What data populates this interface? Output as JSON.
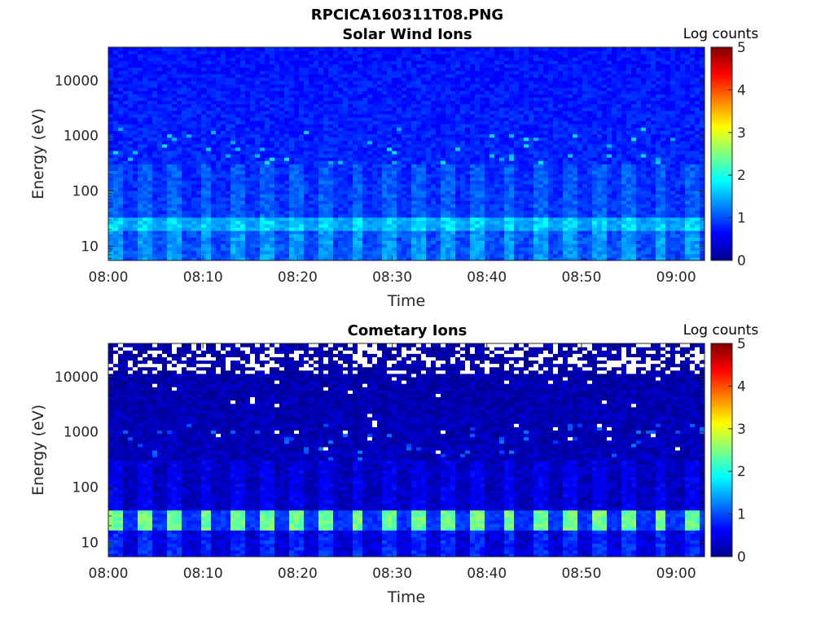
{
  "figure": {
    "title": "RPCICA160311T08.PNG"
  },
  "colors": {
    "background": "#ffffff",
    "empty_bin": "#ffffff",
    "colormap": "jet"
  },
  "chart_data": [
    {
      "type": "heatmap",
      "title": "Solar Wind Ions",
      "xlabel": "Time",
      "ylabel": "Energy (eV)",
      "x_ticks": [
        "08:00",
        "08:10",
        "08:20",
        "08:30",
        "08:40",
        "08:50",
        "09:00"
      ],
      "x_range": [
        "08:00",
        "09:03"
      ],
      "y_scale": "log",
      "y_ticks": [
        10,
        100,
        1000,
        10000
      ],
      "y_range": [
        5.5,
        40000
      ],
      "colorbar": {
        "label": "Log counts",
        "range": [
          0,
          5
        ],
        "ticks": [
          0,
          1,
          2,
          3,
          4,
          5
        ]
      },
      "pattern": {
        "sweep_period_min": 3.2,
        "background_level": 0.9,
        "background_high_energy_level": 0.7,
        "peak_band_eV": [
          20,
          35
        ],
        "peak_level": 1.7,
        "empty_bins_above_eV": null
      }
    },
    {
      "type": "heatmap",
      "title": "Cometary Ions",
      "xlabel": "Time",
      "ylabel": "Energy (eV)",
      "x_ticks": [
        "08:00",
        "08:10",
        "08:20",
        "08:30",
        "08:40",
        "08:50",
        "09:00"
      ],
      "x_range": [
        "08:00",
        "09:03"
      ],
      "y_scale": "log",
      "y_ticks": [
        10,
        100,
        1000,
        10000
      ],
      "y_range": [
        5.5,
        40000
      ],
      "colorbar": {
        "label": "Log counts",
        "range": [
          0,
          5
        ],
        "ticks": [
          0,
          1,
          2,
          3,
          4,
          5
        ]
      },
      "pattern": {
        "sweep_period_min": 3.2,
        "background_level": 0.35,
        "background_high_energy_level": 0.2,
        "peak_band_eV": [
          17,
          40
        ],
        "peak_level": 2.4,
        "empty_bins_above_eV": 12000
      }
    }
  ]
}
